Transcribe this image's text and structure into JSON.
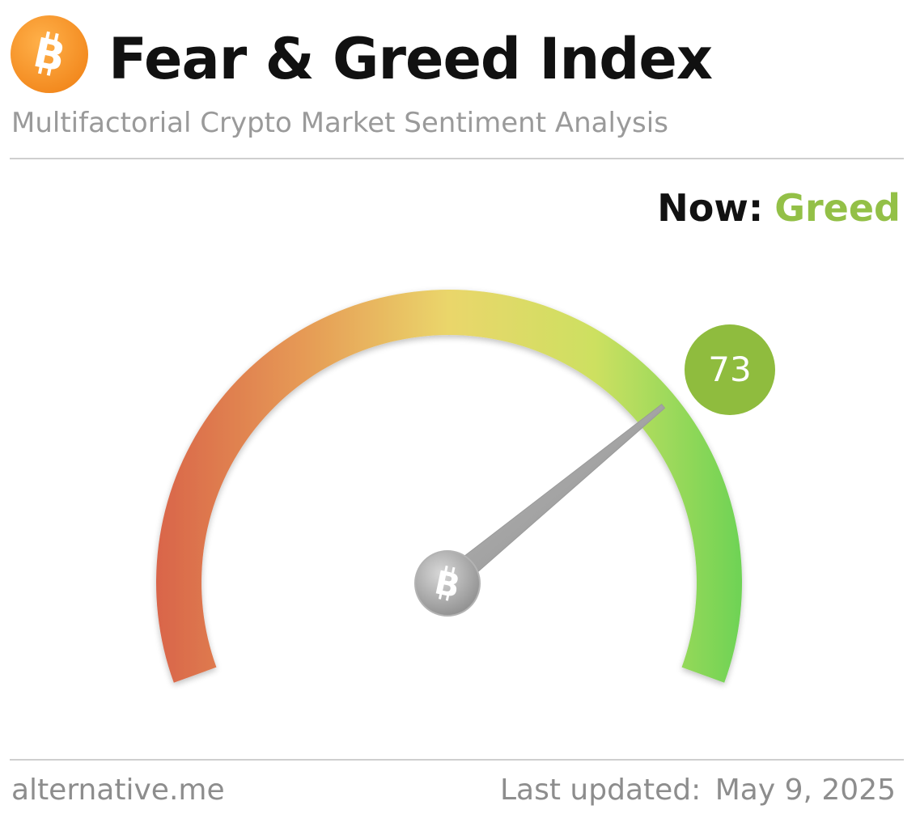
{
  "header": {
    "logo_icon": "bitcoin-logo-icon",
    "title": "Fear & Greed Index",
    "subtitle": "Multifactorial Crypto Market Sentiment Analysis"
  },
  "status": {
    "now_label": "Now:",
    "classification": "Greed",
    "classification_color": "#93c047"
  },
  "gauge": {
    "value": 73,
    "min": 0,
    "max": 100,
    "value_label": "73",
    "value_badge_color": "#8fbc3e",
    "gradient_colors": [
      "#d9654a",
      "#e69a55",
      "#ead66b",
      "#cde061",
      "#6fd355"
    ],
    "needle_hub_icon": "bitcoin-icon"
  },
  "footer": {
    "source": "alternative.me",
    "updated_label": "Last updated:",
    "updated_date": "May 9, 2025"
  }
}
